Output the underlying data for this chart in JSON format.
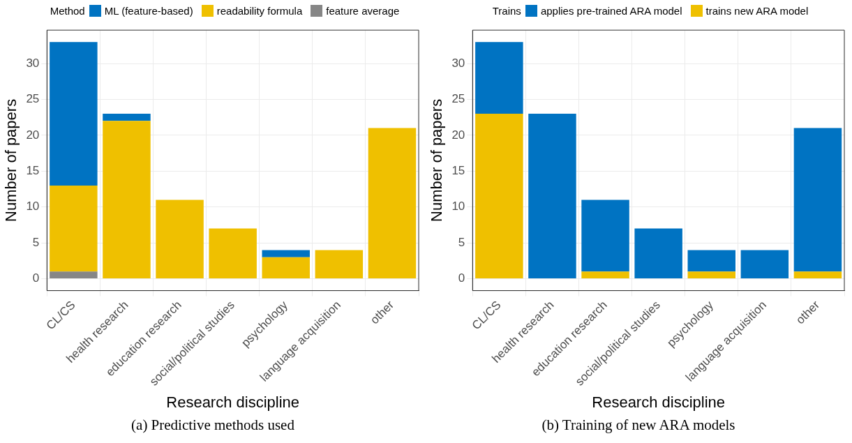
{
  "chart_data": [
    {
      "type": "bar",
      "title": "(a) Predictive methods used",
      "xlabel": "Research discipline",
      "ylabel": "Number of papers",
      "legend_title": "Method",
      "legend": "top",
      "stacked": true,
      "grid": true,
      "categories": [
        "CL/CS",
        "health research",
        "education research",
        "social/political studies",
        "psychology",
        "language acquisition",
        "other"
      ],
      "series": [
        {
          "name": "feature average",
          "color": "#868686",
          "values": [
            1,
            0,
            0,
            0,
            0,
            0,
            0
          ]
        },
        {
          "name": "readability formula",
          "color": "#efc000",
          "values": [
            12,
            22,
            11,
            7,
            3,
            4,
            21
          ]
        },
        {
          "name": "ML (feature-based)",
          "color": "#0073c2",
          "values": [
            20,
            1,
            0,
            0,
            1,
            0,
            0
          ]
        }
      ],
      "ylim": [
        -1.65,
        34.65
      ],
      "yticks": [
        0,
        5,
        10,
        15,
        20,
        25,
        30
      ]
    },
    {
      "type": "bar",
      "title": "(b) Training of new ARA models",
      "xlabel": "Research discipline",
      "ylabel": "Number of papers",
      "legend_title": "Trains",
      "legend": "top",
      "stacked": true,
      "grid": true,
      "categories": [
        "CL/CS",
        "health research",
        "education research",
        "social/political studies",
        "psychology",
        "language acquisition",
        "other"
      ],
      "series": [
        {
          "name": "trains new ARA model",
          "color": "#efc000",
          "values": [
            23,
            0,
            1,
            0,
            1,
            0,
            1
          ]
        },
        {
          "name": "applies pre-trained ARA model",
          "color": "#0073c2",
          "values": [
            10,
            23,
            10,
            7,
            3,
            4,
            20
          ]
        }
      ],
      "ylim": [
        -1.65,
        34.65
      ],
      "yticks": [
        0,
        5,
        10,
        15,
        20,
        25,
        30
      ]
    }
  ]
}
